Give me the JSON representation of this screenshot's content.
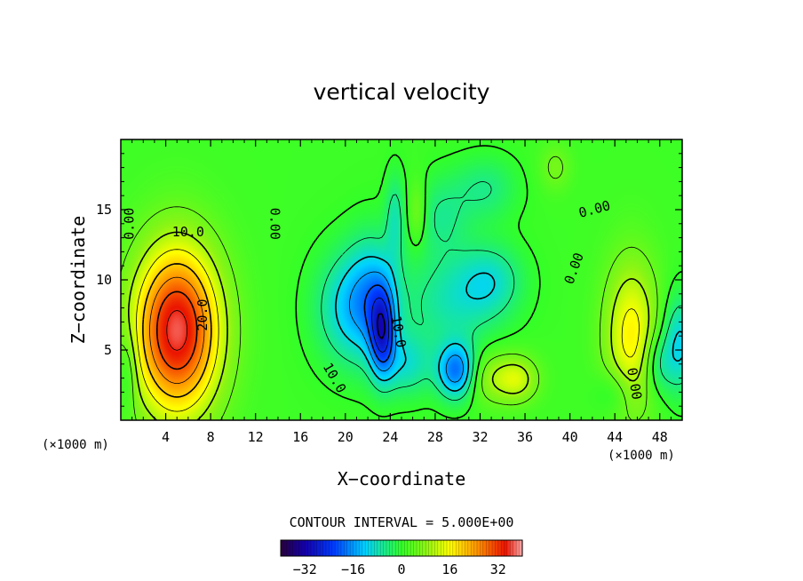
{
  "chart_data": {
    "type": "heatmap",
    "title": "vertical velocity",
    "xlabel": "X−coordinate",
    "ylabel": "Z−coordinate",
    "x_unit_left": "(×1000 m)",
    "x_unit_right": "(×1000 m)",
    "xlim": [
      0,
      50
    ],
    "ylim": [
      0,
      20
    ],
    "x_ticks": [
      4,
      8,
      12,
      16,
      20,
      24,
      28,
      32,
      36,
      40,
      44,
      48
    ],
    "y_ticks": [
      5,
      10,
      15
    ],
    "contour_interval_text": "CONTOUR INTERVAL = 5.000E+00",
    "contour_interval": 5,
    "colorbar": {
      "range": [
        -40,
        40
      ],
      "ticks": [
        -32,
        -16,
        0,
        16,
        32
      ],
      "tick_labels": [
        "−32",
        "−16",
        "0",
        "16",
        "32"
      ]
    },
    "contour_labels": [
      {
        "text": "0.00",
        "x": 0.8,
        "y": 14.0,
        "rotate": -90
      },
      {
        "text": "10.0",
        "x": 6.0,
        "y": 13.4,
        "rotate": 0
      },
      {
        "text": "20.0",
        "x": 7.3,
        "y": 7.5,
        "rotate": -90
      },
      {
        "text": "0.00",
        "x": 13.7,
        "y": 14.0,
        "rotate": 90
      },
      {
        "text": "10.0",
        "x": 19.0,
        "y": 3.0,
        "rotate": 60
      },
      {
        "text": "10.0",
        "x": 24.7,
        "y": 6.3,
        "rotate": 80
      },
      {
        "text": "0.00",
        "x": 42.2,
        "y": 15.0,
        "rotate": -15
      },
      {
        "text": "0.00",
        "x": 40.4,
        "y": 10.8,
        "rotate": -70
      },
      {
        "text": "0.00",
        "x": 45.7,
        "y": 2.6,
        "rotate": 80
      }
    ],
    "field_extrema": [
      {
        "x": 5.0,
        "y": 6.4,
        "value": 36,
        "sx": 2.7,
        "sz": 4.2
      },
      {
        "x": 45.5,
        "y": 6.0,
        "value": 16,
        "sx": 1.7,
        "sz": 3.8
      },
      {
        "x": 33.5,
        "y": 3.0,
        "value": 9,
        "sx": 2.0,
        "sz": 1.3
      },
      {
        "x": 35.5,
        "y": 2.9,
        "value": 7,
        "sx": 1.2,
        "sz": 1.1
      },
      {
        "x": 26.4,
        "y": 14.8,
        "value": 7,
        "sx": 0.6,
        "sz": 1.6
      },
      {
        "x": 38.7,
        "y": 18.0,
        "value": 5,
        "sx": 1.0,
        "sz": 1.2
      },
      {
        "x": 29.9,
        "y": 3.5,
        "value": -20,
        "sx": 1.2,
        "sz": 1.4
      },
      {
        "x": 23.3,
        "y": 6.2,
        "value": -20,
        "sx": 0.8,
        "sz": 2.2
      },
      {
        "x": 22.5,
        "y": 9.0,
        "value": -10,
        "sx": 1.6,
        "sz": 3.0
      },
      {
        "x": 20.5,
        "y": 8.0,
        "value": -12,
        "sx": 2.2,
        "sz": 2.8
      },
      {
        "x": 29.5,
        "y": 8.5,
        "value": -8,
        "sx": 3.0,
        "sz": 2.4
      },
      {
        "x": 33.0,
        "y": 10.0,
        "value": -8,
        "sx": 2.0,
        "sz": 1.8
      },
      {
        "x": 25.5,
        "y": 4.0,
        "value": -9,
        "sx": 1.6,
        "sz": 1.6
      },
      {
        "x": 49.8,
        "y": 5.5,
        "value": -12,
        "sx": 1.1,
        "sz": 2.4
      },
      {
        "x": 47.8,
        "y": 4.0,
        "value": -8,
        "sx": 1.0,
        "sz": 1.6
      },
      {
        "x": 28.5,
        "y": 14.5,
        "value": -6,
        "sx": 1.8,
        "sz": 2.0
      },
      {
        "x": 32.5,
        "y": 16.5,
        "value": -6,
        "sx": 2.0,
        "sz": 1.6
      },
      {
        "x": 24.4,
        "y": 14.5,
        "value": -7,
        "sx": 0.6,
        "sz": 2.2
      },
      {
        "x": 44.0,
        "y": 2.0,
        "value": -5,
        "sx": 1.2,
        "sz": 1.2
      },
      {
        "x": 0.6,
        "y": 3.5,
        "value": -6,
        "sx": 0.6,
        "sz": 2.0
      }
    ]
  }
}
